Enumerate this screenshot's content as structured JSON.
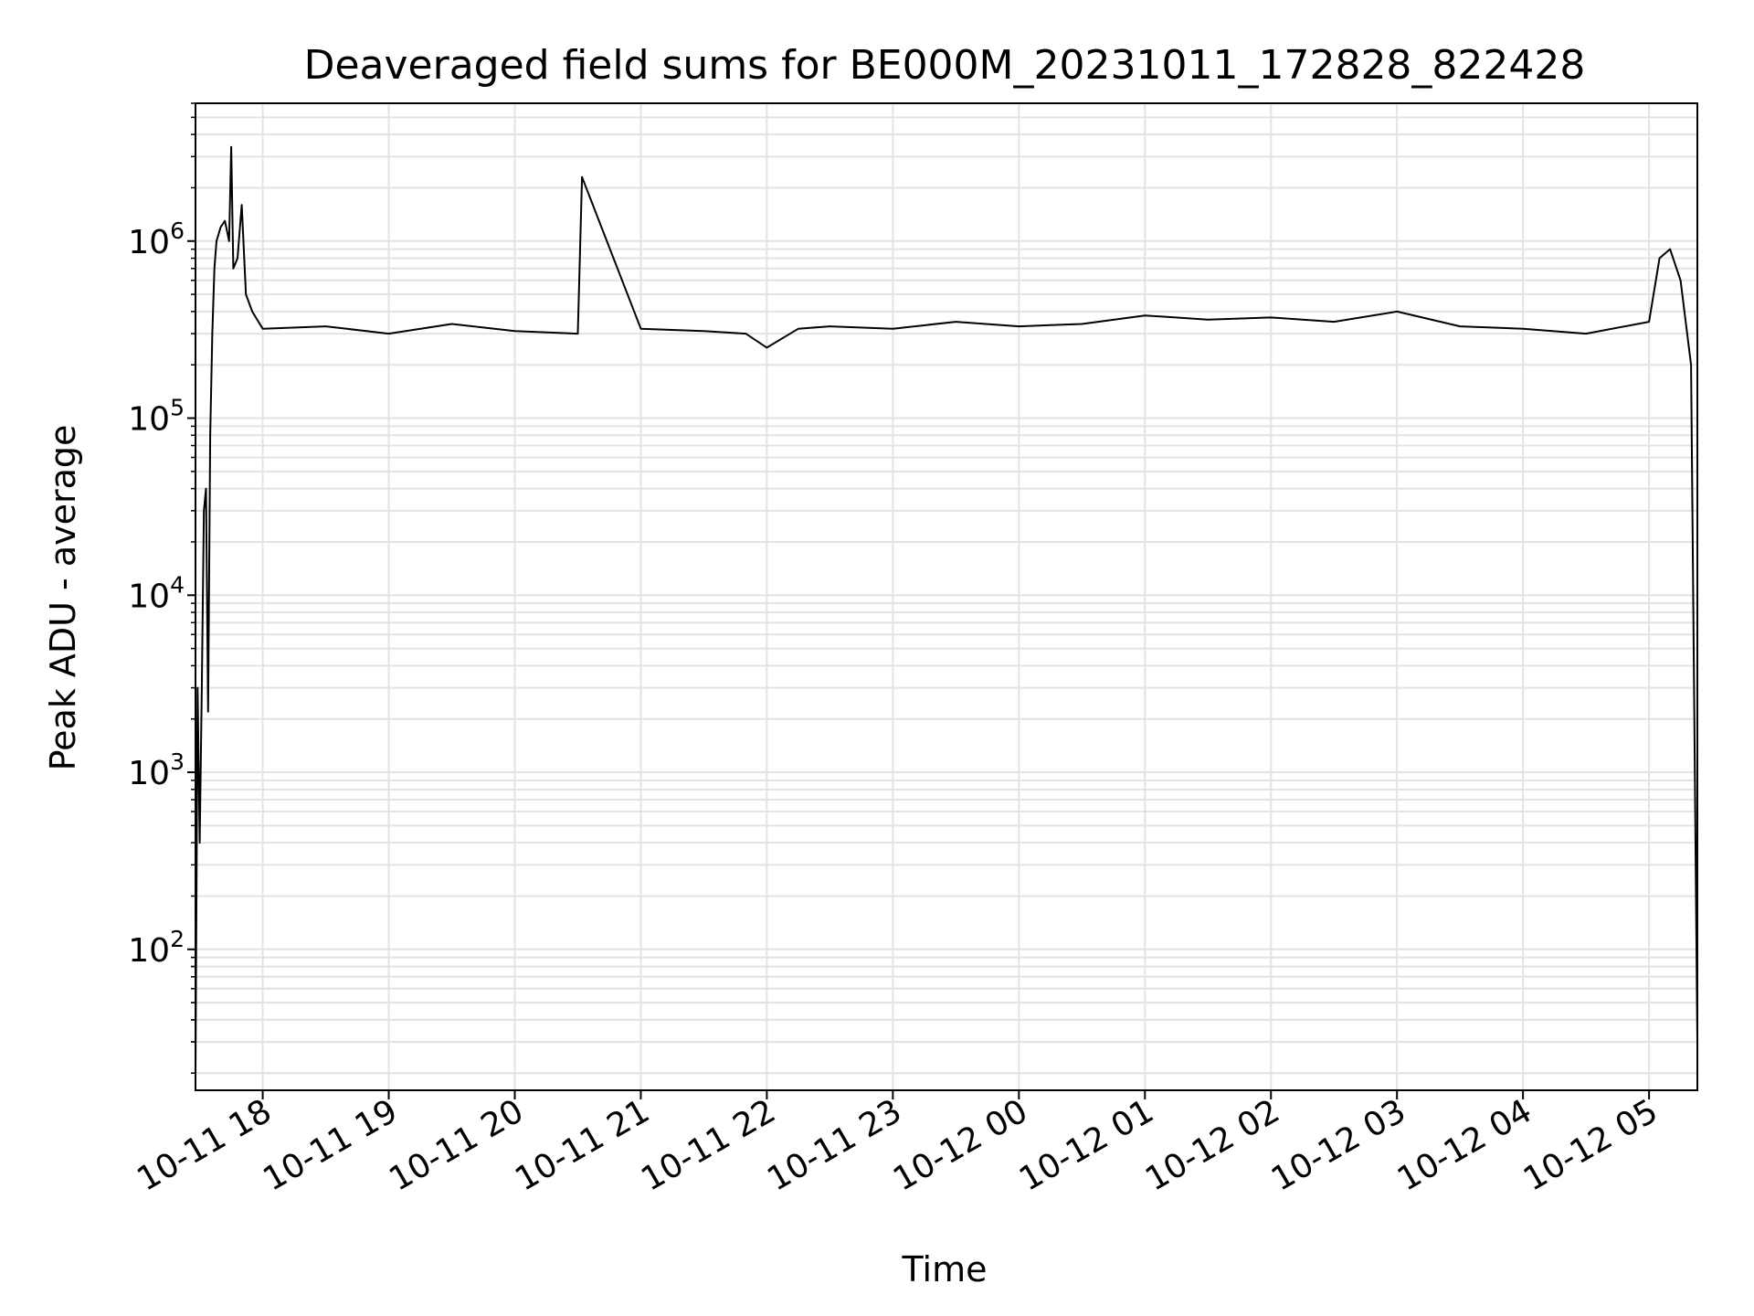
{
  "chart_data": {
    "type": "line",
    "title": "Deaveraged field sums for BE000M_20231011_172828_822428",
    "xlabel": "Time",
    "ylabel": "Peak ADU - average",
    "yscale": "log",
    "ylim": [
      16,
      6000000
    ],
    "xlim": [
      "2023-10-11 17:28",
      "2023-10-12 05:23"
    ],
    "grid": true,
    "line_color": "#000000",
    "grid_color": "#e3e3e3",
    "x_ticks": [
      {
        "t": "2023-10-11 18:00",
        "label": "10-11 18"
      },
      {
        "t": "2023-10-11 19:00",
        "label": "10-11 19"
      },
      {
        "t": "2023-10-11 20:00",
        "label": "10-11 20"
      },
      {
        "t": "2023-10-11 21:00",
        "label": "10-11 21"
      },
      {
        "t": "2023-10-11 22:00",
        "label": "10-11 22"
      },
      {
        "t": "2023-10-11 23:00",
        "label": "10-11 23"
      },
      {
        "t": "2023-10-12 00:00",
        "label": "10-12 00"
      },
      {
        "t": "2023-10-12 01:00",
        "label": "10-12 01"
      },
      {
        "t": "2023-10-12 02:00",
        "label": "10-12 02"
      },
      {
        "t": "2023-10-12 03:00",
        "label": "10-12 03"
      },
      {
        "t": "2023-10-12 04:00",
        "label": "10-12 04"
      },
      {
        "t": "2023-10-12 05:00",
        "label": "10-12 05"
      }
    ],
    "y_ticks": [
      {
        "value": 100,
        "base": "10",
        "exp": "2"
      },
      {
        "value": 1000,
        "base": "10",
        "exp": "3"
      },
      {
        "value": 10000,
        "base": "10",
        "exp": "4"
      },
      {
        "value": 100000,
        "base": "10",
        "exp": "5"
      },
      {
        "value": 1000000,
        "base": "10",
        "exp": "6"
      }
    ],
    "series": [
      {
        "x": [
          "2023-10-11 17:28",
          "2023-10-11 17:29",
          "2023-10-11 17:30",
          "2023-10-11 17:31",
          "2023-10-11 17:32",
          "2023-10-11 17:33",
          "2023-10-11 17:34",
          "2023-10-11 17:35",
          "2023-10-11 17:36",
          "2023-10-11 17:37",
          "2023-10-11 17:38",
          "2023-10-11 17:40",
          "2023-10-11 17:42",
          "2023-10-11 17:44",
          "2023-10-11 17:45",
          "2023-10-11 17:46",
          "2023-10-11 17:48",
          "2023-10-11 17:50",
          "2023-10-11 17:52",
          "2023-10-11 17:55",
          "2023-10-11 18:00",
          "2023-10-11 18:30",
          "2023-10-11 19:00",
          "2023-10-11 19:30",
          "2023-10-11 20:00",
          "2023-10-11 20:30",
          "2023-10-11 20:32",
          "2023-10-11 21:00",
          "2023-10-11 21:30",
          "2023-10-11 21:50",
          "2023-10-11 22:00",
          "2023-10-11 22:15",
          "2023-10-11 22:30",
          "2023-10-11 23:00",
          "2023-10-11 23:30",
          "2023-10-12 00:00",
          "2023-10-12 00:30",
          "2023-10-12 01:00",
          "2023-10-12 01:30",
          "2023-10-12 02:00",
          "2023-10-12 02:30",
          "2023-10-12 03:00",
          "2023-10-12 03:30",
          "2023-10-12 04:00",
          "2023-10-12 04:30",
          "2023-10-12 05:00",
          "2023-10-12 05:05",
          "2023-10-12 05:10",
          "2023-10-12 05:15",
          "2023-10-12 05:20",
          "2023-10-12 05:23"
        ],
        "y": [
          20,
          3000,
          400,
          3000,
          30000,
          40000,
          2200,
          80000,
          300000,
          700000,
          1000000,
          1200000,
          1300000,
          1000000,
          3400000,
          700000,
          800000,
          1600000,
          500000,
          400000,
          320000,
          330000,
          300000,
          340000,
          310000,
          300000,
          2300000,
          320000,
          310000,
          300000,
          250000,
          320000,
          330000,
          320000,
          350000,
          330000,
          340000,
          380000,
          360000,
          370000,
          350000,
          400000,
          330000,
          320000,
          300000,
          350000,
          800000,
          900000,
          600000,
          200000,
          30
        ]
      }
    ]
  }
}
